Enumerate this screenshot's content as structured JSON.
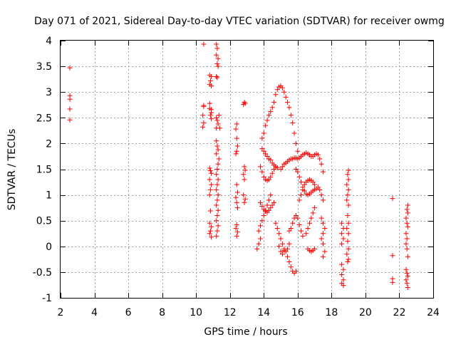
{
  "chart_data": {
    "type": "scatter",
    "title": "Day 071 of 2021, Sidereal Day-to-day VTEC variation (SDTVAR) for receiver owmg",
    "xlabel": "GPS time / hours",
    "ylabel": "SDTVAR / TECUs",
    "xlim": [
      2,
      24
    ],
    "ylim": [
      -1,
      4
    ],
    "x_ticks": [
      2,
      4,
      6,
      8,
      10,
      12,
      14,
      16,
      18,
      20,
      22,
      24
    ],
    "y_ticks": [
      -1,
      -0.5,
      0,
      0.5,
      1,
      1.5,
      2,
      2.5,
      3,
      3.5,
      4
    ],
    "y_tick_labels": [
      "-1",
      "-0.5",
      "0",
      "0.5",
      "1",
      "1.5",
      "2",
      "2.5",
      "3",
      "3.5",
      "4"
    ],
    "grid": true,
    "marker": "+",
    "color": "#ff0000",
    "series": [
      {
        "name": "SDTVAR",
        "points": [
          [
            2.55,
            3.47
          ],
          [
            2.55,
            2.93
          ],
          [
            2.55,
            2.86
          ],
          [
            2.55,
            2.67
          ],
          [
            2.55,
            2.46
          ],
          [
            10.45,
            3.93
          ],
          [
            10.45,
            2.74
          ],
          [
            10.45,
            2.72
          ],
          [
            10.4,
            2.55
          ],
          [
            10.45,
            2.4
          ],
          [
            10.4,
            2.32
          ],
          [
            10.8,
            3.33
          ],
          [
            10.9,
            3.3
          ],
          [
            10.85,
            3.22
          ],
          [
            10.8,
            3.15
          ],
          [
            10.9,
            3.12
          ],
          [
            10.8,
            2.78
          ],
          [
            10.8,
            2.68
          ],
          [
            10.9,
            2.66
          ],
          [
            10.9,
            2.6
          ],
          [
            10.85,
            2.55
          ],
          [
            10.9,
            2.48
          ],
          [
            10.8,
            1.52
          ],
          [
            10.85,
            1.47
          ],
          [
            10.9,
            1.42
          ],
          [
            10.8,
            1.3
          ],
          [
            10.9,
            1.2
          ],
          [
            10.85,
            1.1
          ],
          [
            10.8,
            1.0
          ],
          [
            10.85,
            0.69
          ],
          [
            10.8,
            0.45
          ],
          [
            10.9,
            0.38
          ],
          [
            10.85,
            0.3
          ],
          [
            10.8,
            0.25
          ],
          [
            10.9,
            0.18
          ],
          [
            11.2,
            3.93
          ],
          [
            11.25,
            3.85
          ],
          [
            11.2,
            3.72
          ],
          [
            11.3,
            3.65
          ],
          [
            11.25,
            3.55
          ],
          [
            11.3,
            3.5
          ],
          [
            11.2,
            3.3
          ],
          [
            11.25,
            3.28
          ],
          [
            11.2,
            2.5
          ],
          [
            11.25,
            2.45
          ],
          [
            11.3,
            2.38
          ],
          [
            11.2,
            2.3
          ],
          [
            11.35,
            2.55
          ],
          [
            11.4,
            2.3
          ],
          [
            11.2,
            2.05
          ],
          [
            11.25,
            1.95
          ],
          [
            11.3,
            1.88
          ],
          [
            11.2,
            1.8
          ],
          [
            11.35,
            1.7
          ],
          [
            11.3,
            1.6
          ],
          [
            11.25,
            1.5
          ],
          [
            11.2,
            1.4
          ],
          [
            11.3,
            1.3
          ],
          [
            11.25,
            1.2
          ],
          [
            11.2,
            1.1
          ],
          [
            11.3,
            1.0
          ],
          [
            11.25,
            0.9
          ],
          [
            11.2,
            0.8
          ],
          [
            11.3,
            0.7
          ],
          [
            11.25,
            0.6
          ],
          [
            11.2,
            0.5
          ],
          [
            11.3,
            0.4
          ],
          [
            11.25,
            0.3
          ],
          [
            11.2,
            0.2
          ],
          [
            12.4,
            2.38
          ],
          [
            12.35,
            2.28
          ],
          [
            12.4,
            2.1
          ],
          [
            12.45,
            1.95
          ],
          [
            12.4,
            1.85
          ],
          [
            12.35,
            1.8
          ],
          [
            12.4,
            1.2
          ],
          [
            12.45,
            1.05
          ],
          [
            12.35,
            0.95
          ],
          [
            12.4,
            0.85
          ],
          [
            12.45,
            0.75
          ],
          [
            12.4,
            0.42
          ],
          [
            12.35,
            0.35
          ],
          [
            12.45,
            0.28
          ],
          [
            12.4,
            0.2
          ],
          [
            12.85,
            2.8
          ],
          [
            12.9,
            2.78
          ],
          [
            12.8,
            2.76
          ],
          [
            12.85,
            1.55
          ],
          [
            12.9,
            1.48
          ],
          [
            12.8,
            1.4
          ],
          [
            12.85,
            1.3
          ],
          [
            12.8,
            1.0
          ],
          [
            12.9,
            0.92
          ],
          [
            12.85,
            0.85
          ],
          [
            13.9,
            1.9
          ],
          [
            14.0,
            1.85
          ],
          [
            14.1,
            1.8
          ],
          [
            14.2,
            1.75
          ],
          [
            14.3,
            1.7
          ],
          [
            14.4,
            1.68
          ],
          [
            14.5,
            1.62
          ],
          [
            14.6,
            1.58
          ],
          [
            14.7,
            1.55
          ],
          [
            14.8,
            1.53
          ],
          [
            13.9,
            2.1
          ],
          [
            14.0,
            2.2
          ],
          [
            14.1,
            2.35
          ],
          [
            14.2,
            2.45
          ],
          [
            14.3,
            2.55
          ],
          [
            14.4,
            2.62
          ],
          [
            14.5,
            2.7
          ],
          [
            14.6,
            2.8
          ],
          [
            14.7,
            2.95
          ],
          [
            14.8,
            3.05
          ],
          [
            14.9,
            3.1
          ],
          [
            15.0,
            3.12
          ],
          [
            15.1,
            3.08
          ],
          [
            15.2,
            3.0
          ],
          [
            15.3,
            2.9
          ],
          [
            15.4,
            2.8
          ],
          [
            15.5,
            2.7
          ],
          [
            15.6,
            2.55
          ],
          [
            15.7,
            2.4
          ],
          [
            15.8,
            2.2
          ],
          [
            15.9,
            2.0
          ],
          [
            16.0,
            1.85
          ],
          [
            13.8,
            1.55
          ],
          [
            13.9,
            1.45
          ],
          [
            14.0,
            1.35
          ],
          [
            14.1,
            1.3
          ],
          [
            14.2,
            1.28
          ],
          [
            14.3,
            1.3
          ],
          [
            14.4,
            1.35
          ],
          [
            14.5,
            1.42
          ],
          [
            14.6,
            1.5
          ],
          [
            14.7,
            1.55
          ],
          [
            13.8,
            0.85
          ],
          [
            13.9,
            0.78
          ],
          [
            14.0,
            0.72
          ],
          [
            14.1,
            0.68
          ],
          [
            14.2,
            0.66
          ],
          [
            14.3,
            0.7
          ],
          [
            14.4,
            0.75
          ],
          [
            14.5,
            0.8
          ],
          [
            14.6,
            0.85
          ],
          [
            13.7,
            0.3
          ],
          [
            13.8,
            0.4
          ],
          [
            13.9,
            0.5
          ],
          [
            14.0,
            0.6
          ],
          [
            14.1,
            0.7
          ],
          [
            14.2,
            0.8
          ],
          [
            14.3,
            0.9
          ],
          [
            14.4,
            1.0
          ],
          [
            13.6,
            -0.05
          ],
          [
            13.7,
            0.05
          ],
          [
            13.8,
            0.15
          ],
          [
            14.7,
            0.45
          ],
          [
            14.8,
            0.35
          ],
          [
            14.9,
            0.25
          ],
          [
            15.0,
            0.15
          ],
          [
            15.1,
            0.05
          ],
          [
            15.2,
            -0.05
          ],
          [
            15.3,
            -0.1
          ],
          [
            15.4,
            -0.05
          ],
          [
            15.5,
            0.05
          ],
          [
            14.9,
            0.0
          ],
          [
            15.0,
            -0.1
          ],
          [
            15.1,
            -0.15
          ],
          [
            15.2,
            -0.08
          ],
          [
            15.4,
            -0.2
          ],
          [
            15.5,
            -0.3
          ],
          [
            15.6,
            -0.4
          ],
          [
            15.7,
            -0.48
          ],
          [
            15.8,
            -0.52
          ],
          [
            15.9,
            -0.48
          ],
          [
            15.5,
            0.3
          ],
          [
            15.6,
            0.35
          ],
          [
            15.7,
            0.45
          ],
          [
            15.8,
            0.55
          ],
          [
            15.9,
            0.6
          ],
          [
            16.0,
            0.55
          ],
          [
            16.1,
            0.42
          ],
          [
            16.2,
            0.3
          ],
          [
            16.3,
            0.2
          ],
          [
            15.0,
            1.5
          ],
          [
            15.1,
            1.55
          ],
          [
            15.2,
            1.6
          ],
          [
            15.3,
            1.62
          ],
          [
            15.4,
            1.65
          ],
          [
            15.5,
            1.68
          ],
          [
            15.6,
            1.7
          ],
          [
            15.7,
            1.7
          ],
          [
            15.8,
            1.72
          ],
          [
            15.9,
            1.72
          ],
          [
            16.0,
            1.7
          ],
          [
            16.1,
            1.72
          ],
          [
            16.2,
            1.75
          ],
          [
            16.3,
            1.78
          ],
          [
            16.4,
            1.8
          ],
          [
            16.5,
            1.82
          ],
          [
            16.6,
            1.8
          ],
          [
            16.7,
            1.78
          ],
          [
            16.8,
            1.75
          ],
          [
            16.9,
            1.75
          ],
          [
            17.0,
            1.78
          ],
          [
            17.1,
            1.8
          ],
          [
            17.2,
            1.78
          ],
          [
            17.3,
            1.7
          ],
          [
            17.4,
            1.6
          ],
          [
            17.5,
            1.45
          ],
          [
            15.9,
            1.5
          ],
          [
            16.0,
            1.45
          ],
          [
            16.1,
            1.35
          ],
          [
            16.2,
            1.25
          ],
          [
            16.3,
            1.15
          ],
          [
            16.4,
            1.08
          ],
          [
            16.5,
            1.02
          ],
          [
            16.6,
            1.0
          ],
          [
            16.7,
            1.02
          ],
          [
            16.8,
            1.05
          ],
          [
            16.9,
            1.08
          ],
          [
            17.0,
            1.1
          ],
          [
            17.1,
            1.12
          ],
          [
            17.2,
            1.15
          ],
          [
            17.3,
            1.1
          ],
          [
            17.4,
            1.0
          ],
          [
            17.5,
            0.9
          ],
          [
            16.1,
            0.9
          ],
          [
            16.2,
            1.0
          ],
          [
            16.3,
            1.1
          ],
          [
            16.4,
            1.2
          ],
          [
            16.5,
            1.25
          ],
          [
            16.6,
            1.28
          ],
          [
            16.7,
            1.3
          ],
          [
            16.8,
            1.28
          ],
          [
            16.9,
            1.25
          ],
          [
            17.0,
            1.2
          ],
          [
            16.5,
            0.25
          ],
          [
            16.6,
            0.35
          ],
          [
            16.7,
            0.45
          ],
          [
            16.8,
            0.55
          ],
          [
            16.9,
            0.65
          ],
          [
            17.0,
            0.75
          ],
          [
            16.6,
            -0.05
          ],
          [
            16.7,
            -0.08
          ],
          [
            16.8,
            -0.1
          ],
          [
            16.9,
            -0.08
          ],
          [
            17.0,
            -0.05
          ],
          [
            17.4,
            0.55
          ],
          [
            17.5,
            0.45
          ],
          [
            17.6,
            0.35
          ],
          [
            17.5,
            0.25
          ],
          [
            17.4,
            0.15
          ],
          [
            17.5,
            0.05
          ],
          [
            17.6,
            -0.1
          ],
          [
            17.5,
            -0.2
          ],
          [
            18.6,
            0.45
          ],
          [
            18.7,
            0.35
          ],
          [
            18.6,
            0.25
          ],
          [
            18.7,
            0.15
          ],
          [
            18.6,
            0.05
          ],
          [
            18.6,
            -0.35
          ],
          [
            18.7,
            -0.45
          ],
          [
            18.6,
            -0.55
          ],
          [
            18.7,
            -0.65
          ],
          [
            18.6,
            -0.72
          ],
          [
            18.7,
            -0.76
          ],
          [
            19.0,
            1.48
          ],
          [
            18.95,
            1.4
          ],
          [
            19.0,
            1.3
          ],
          [
            18.9,
            1.2
          ],
          [
            19.0,
            1.1
          ],
          [
            18.95,
            1.0
          ],
          [
            18.9,
            0.9
          ],
          [
            19.0,
            0.8
          ],
          [
            18.95,
            0.6
          ],
          [
            19.0,
            0.45
          ],
          [
            18.9,
            0.35
          ],
          [
            19.0,
            0.25
          ],
          [
            18.95,
            0.1
          ],
          [
            19.0,
            -0.05
          ],
          [
            18.9,
            -0.15
          ],
          [
            19.0,
            -0.25
          ],
          [
            18.95,
            -0.3
          ],
          [
            21.6,
            0.93
          ],
          [
            21.6,
            -0.18
          ],
          [
            21.6,
            -0.63
          ],
          [
            21.6,
            -0.7
          ],
          [
            22.5,
            0.8
          ],
          [
            22.45,
            0.72
          ],
          [
            22.5,
            0.65
          ],
          [
            22.4,
            0.55
          ],
          [
            22.45,
            0.45
          ],
          [
            22.5,
            0.38
          ],
          [
            22.4,
            0.25
          ],
          [
            22.45,
            0.15
          ],
          [
            22.4,
            0.05
          ],
          [
            22.45,
            -0.05
          ],
          [
            22.5,
            -0.2
          ],
          [
            22.4,
            -0.45
          ],
          [
            22.45,
            -0.52
          ],
          [
            22.5,
            -0.58
          ],
          [
            22.4,
            -0.65
          ],
          [
            22.45,
            -0.72
          ],
          [
            22.5,
            -0.8
          ]
        ]
      }
    ]
  }
}
